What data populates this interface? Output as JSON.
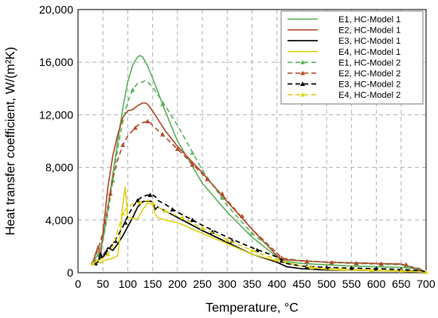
{
  "chart_data": {
    "type": "line",
    "title": "",
    "xlabel": "Temperature, °C",
    "ylabel": "Heat transfer coefficient, W/(m²K)",
    "xlim": [
      0,
      700
    ],
    "ylim": [
      0,
      20000
    ],
    "xticks": [
      0,
      50,
      100,
      150,
      200,
      250,
      300,
      350,
      400,
      450,
      500,
      550,
      600,
      650,
      700
    ],
    "yticks": [
      0,
      4000,
      8000,
      12000,
      16000,
      20000
    ],
    "xtick_labels": [
      "0",
      "50",
      "100",
      "150",
      "200",
      "250",
      "300",
      "350",
      "400",
      "450",
      "500",
      "550",
      "600",
      "650",
      "700"
    ],
    "ytick_labels": [
      "0",
      "4,000",
      "8,000",
      "12,000",
      "16,000",
      "20,000"
    ],
    "grid": true,
    "legend_position": "top-right",
    "series": [
      {
        "name": "E1, HC-Model 1",
        "color": "#5fb25c",
        "style": "solid",
        "marker": "none",
        "x": [
          30,
          40,
          50,
          60,
          70,
          80,
          90,
          100,
          110,
          120,
          125,
          130,
          140,
          150,
          175,
          200,
          250,
          300,
          350,
          400,
          410,
          450,
          500,
          550,
          600,
          650,
          670,
          690,
          700
        ],
        "y": [
          800,
          1400,
          2500,
          5000,
          7500,
          10000,
          12500,
          14500,
          15800,
          16400,
          16500,
          16400,
          15700,
          14800,
          12300,
          10000,
          6800,
          4600,
          2700,
          1200,
          900,
          700,
          600,
          500,
          450,
          400,
          350,
          200,
          50
        ]
      },
      {
        "name": "E2, HC-Model 1",
        "color": "#b24a2c",
        "style": "solid",
        "marker": "none",
        "x": [
          30,
          40,
          45,
          50,
          60,
          70,
          80,
          90,
          100,
          110,
          120,
          130,
          135,
          140,
          150,
          175,
          200,
          250,
          300,
          350,
          400,
          410,
          450,
          500,
          550,
          600,
          650,
          690,
          700
        ],
        "y": [
          800,
          2000,
          1200,
          3000,
          6500,
          8900,
          10500,
          11800,
          12300,
          12400,
          12700,
          12900,
          12900,
          12800,
          12300,
          10800,
          9600,
          7600,
          5400,
          3300,
          1300,
          1000,
          900,
          800,
          750,
          700,
          650,
          200,
          50
        ]
      },
      {
        "name": "E3, HC-Model 1",
        "color": "#000000",
        "style": "solid",
        "marker": "none",
        "x": [
          30,
          40,
          45,
          50,
          60,
          70,
          80,
          90,
          100,
          110,
          120,
          130,
          140,
          150,
          155,
          160,
          175,
          200,
          250,
          300,
          350,
          400,
          420,
          450,
          500,
          550,
          600,
          650,
          690,
          700
        ],
        "y": [
          600,
          800,
          1500,
          1100,
          1900,
          1700,
          2200,
          2800,
          3500,
          4200,
          5000,
          5400,
          5450,
          5400,
          4800,
          5000,
          4700,
          4200,
          3200,
          2300,
          1400,
          800,
          450,
          300,
          200,
          200,
          150,
          150,
          100,
          50
        ]
      },
      {
        "name": "E4, HC-Model 1",
        "color": "#e0d21e",
        "style": "solid",
        "marker": "none",
        "x": [
          30,
          40,
          45,
          50,
          60,
          70,
          80,
          85,
          90,
          95,
          100,
          110,
          120,
          130,
          140,
          150,
          155,
          160,
          175,
          200,
          250,
          300,
          350,
          400,
          450,
          500,
          550,
          600,
          650,
          700
        ],
        "y": [
          800,
          1000,
          700,
          900,
          1000,
          1100,
          1300,
          3000,
          5200,
          6500,
          4200,
          4100,
          4100,
          4800,
          5300,
          5200,
          4500,
          4200,
          4000,
          3800,
          3000,
          2200,
          1400,
          900,
          500,
          250,
          200,
          150,
          100,
          50
        ]
      },
      {
        "name": "E1, HC-Model 2",
        "color": "#5fb25c",
        "style": "dashed",
        "marker": "triangle",
        "x": [
          30,
          40,
          50,
          60,
          70,
          80,
          90,
          100,
          110,
          120,
          130,
          135,
          140,
          150,
          175,
          200,
          250,
          300,
          350,
          400,
          410,
          450,
          500,
          550,
          600,
          650,
          690,
          700
        ],
        "y": [
          700,
          1200,
          2400,
          4500,
          7000,
          9500,
          11500,
          13000,
          13900,
          14400,
          14500,
          14600,
          14500,
          14100,
          12700,
          11200,
          7800,
          5100,
          3000,
          1500,
          1100,
          900,
          800,
          700,
          650,
          600,
          300,
          50
        ],
        "marker_x": [
          30,
          70,
          110,
          170,
          230,
          290,
          350,
          410,
          460,
          510,
          560,
          610,
          660
        ],
        "marker_y": [
          700,
          7000,
          13900,
          12800,
          9100,
          5700,
          3000,
          1100,
          850,
          750,
          680,
          620,
          550
        ]
      },
      {
        "name": "E2, HC-Model 2",
        "color": "#b24a2c",
        "style": "dashed",
        "marker": "triangle",
        "x": [
          30,
          40,
          50,
          60,
          70,
          80,
          90,
          100,
          110,
          120,
          130,
          140,
          145,
          150,
          175,
          200,
          250,
          300,
          350,
          400,
          410,
          450,
          500,
          550,
          600,
          650,
          690,
          700
        ],
        "y": [
          800,
          1800,
          3000,
          5000,
          7200,
          8600,
          9700,
          10400,
          10800,
          11200,
          11400,
          11500,
          11400,
          11200,
          10300,
          9400,
          7500,
          5500,
          3300,
          1500,
          1100,
          900,
          800,
          750,
          700,
          650,
          200,
          50
        ],
        "marker_x": [
          30,
          65,
          90,
          115,
          140,
          170,
          200,
          230,
          260,
          290,
          330,
          410,
          460,
          510,
          560,
          610,
          660
        ],
        "marker_y": [
          800,
          6000,
          9700,
          11000,
          11500,
          10500,
          9400,
          8200,
          7100,
          6000,
          4300,
          1100,
          850,
          780,
          720,
          680,
          620
        ]
      },
      {
        "name": "E3, HC-Model 2",
        "color": "#000000",
        "style": "dashed",
        "marker": "triangle",
        "x": [
          30,
          40,
          50,
          60,
          70,
          80,
          90,
          100,
          110,
          120,
          130,
          140,
          150,
          155,
          160,
          175,
          200,
          250,
          300,
          350,
          400,
          420,
          450,
          500,
          550,
          600,
          650,
          690,
          700
        ],
        "y": [
          600,
          900,
          1300,
          1700,
          2200,
          2800,
          3500,
          4300,
          5000,
          5500,
          5800,
          5900,
          5900,
          5800,
          5500,
          5200,
          4600,
          3600,
          2700,
          1900,
          1200,
          700,
          500,
          400,
          350,
          300,
          250,
          150,
          50
        ],
        "marker_x": [
          35,
          55,
          75,
          95,
          120,
          145,
          190,
          230,
          270,
          310,
          360,
          410,
          460,
          500,
          550,
          600,
          650
        ],
        "marker_y": [
          700,
          1500,
          2400,
          3800,
          5500,
          5900,
          4800,
          4000,
          3100,
          2400,
          1700,
          900,
          450,
          400,
          350,
          300,
          250
        ]
      },
      {
        "name": "E4, HC-Model 2",
        "color": "#e0d21e",
        "style": "dashed",
        "marker": "triangle",
        "x": [
          30,
          40,
          50,
          60,
          70,
          80,
          90,
          100,
          110,
          120,
          130,
          140,
          150,
          160,
          175,
          200,
          250,
          300,
          350,
          400,
          450,
          500,
          550,
          600,
          650,
          700
        ],
        "y": [
          700,
          900,
          1100,
          1400,
          2000,
          3200,
          4500,
          5000,
          5200,
          5300,
          5400,
          5500,
          5300,
          5000,
          4700,
          4300,
          3400,
          2500,
          1700,
          1000,
          500,
          300,
          250,
          200,
          150,
          50
        ],
        "marker_x": [
          30,
          60,
          90,
          125,
          150,
          175,
          210,
          250,
          300,
          350,
          400,
          470,
          530,
          590,
          650,
          700
        ],
        "marker_y": [
          700,
          1400,
          4500,
          5350,
          5300,
          4700,
          4200,
          3400,
          2500,
          1700,
          1000,
          400,
          260,
          200,
          150,
          50
        ]
      }
    ]
  }
}
